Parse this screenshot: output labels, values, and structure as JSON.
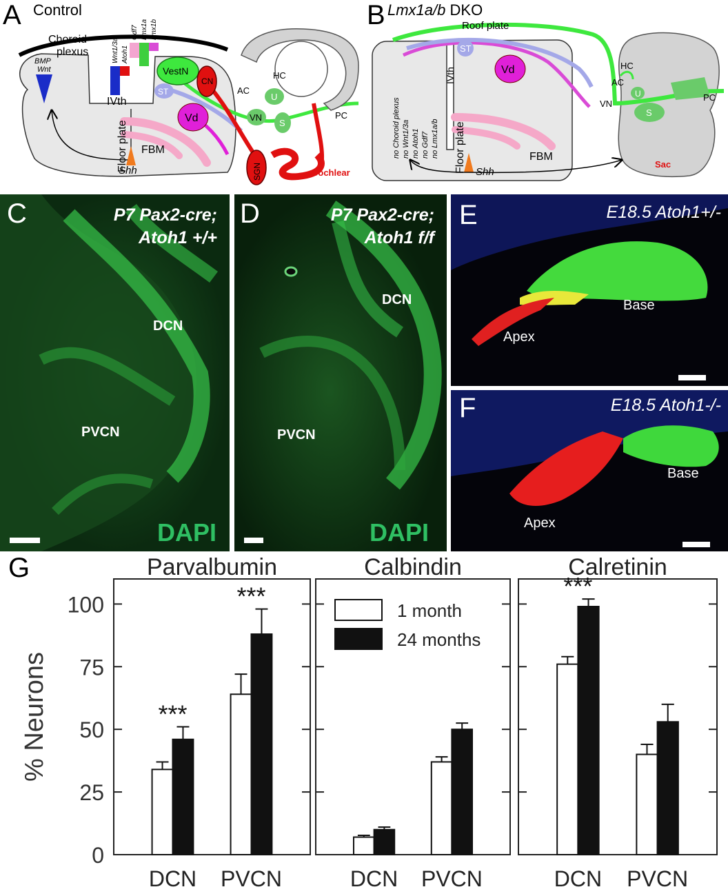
{
  "panel_A": {
    "letter": "A",
    "title": "Control",
    "labels": {
      "choroid": "Choroid",
      "plexus": "plexus",
      "bmp": "BMP",
      "wnt": "Wnt",
      "genes": [
        "Wnt1/3a",
        "Atoh1",
        "Gdf7",
        "Lmx1a",
        "Lmx1b"
      ],
      "ivth": "IVth",
      "vestn": "VestN",
      "cn": "CN",
      "st": "ST",
      "vd": "Vd",
      "vn": "VN",
      "hc": "HC",
      "ac": "AC",
      "u": "U",
      "s": "S",
      "pc": "PC",
      "floor_plate": "Floor plate",
      "fbm": "FBM",
      "shh": "Shh",
      "sgn": "SGN",
      "cochlear": "Cochlear"
    }
  },
  "panel_B": {
    "letter": "B",
    "title_italic": "Lmx1a/b",
    "title_rest": " DKO",
    "labels": {
      "roof_plate": "Roof plate",
      "st": "ST",
      "vd": "Vd",
      "ivth": "IVth",
      "no_list": [
        "no Choroid plexus",
        "no Wnt1/3a",
        "no Atoh1",
        "no Gdf7",
        "no Lmx1a/b"
      ],
      "floor_plate": "Floor plate",
      "fbm": "FBM",
      "shh": "Shh",
      "hc": "HC",
      "ac": "AC",
      "u": "U",
      "vn": "VN",
      "s": "S",
      "pc": "PC",
      "sac": "Sac"
    }
  },
  "panel_C": {
    "letter": "C",
    "title_line1": "P7 Pax2-cre;",
    "title_line2": "Atoh1 +/+",
    "dcn": "DCN",
    "pvcn": "PVCN",
    "stain": "DAPI"
  },
  "panel_D": {
    "letter": "D",
    "title_line1": "P7 Pax2-cre;",
    "title_line2": "Atoh1 f/f",
    "dcn": "DCN",
    "pvcn": "PVCN",
    "stain": "DAPI"
  },
  "panel_E": {
    "letter": "E",
    "title": "E18.5 Atoh1+/-",
    "base": "Base",
    "apex": "Apex"
  },
  "panel_F": {
    "letter": "F",
    "title": "E18.5 Atoh1-/-",
    "base": "Base",
    "apex": "Apex"
  },
  "panel_G": {
    "letter": "G",
    "ylabel": "% Neurons",
    "legend": [
      "1 month",
      "24 months"
    ]
  },
  "chart_data": {
    "type": "bar",
    "ylabel": "% Neurons",
    "ylim": [
      0,
      110
    ],
    "yticks": [
      0,
      25,
      50,
      75,
      100
    ],
    "legend_placement": "top-left of middle subplot",
    "series_names": [
      "1 month",
      "24 months"
    ],
    "series_colors": [
      "#ffffff",
      "#111111"
    ],
    "subplots": [
      {
        "title": "Parvalbumin",
        "categories": [
          "DCN",
          "PVCN"
        ],
        "series": [
          {
            "name": "1 month",
            "values": [
              34,
              64
            ],
            "errors": [
              3,
              8
            ]
          },
          {
            "name": "24 months",
            "values": [
              46,
              88
            ],
            "errors": [
              5,
              10
            ]
          }
        ],
        "annotations": [
          {
            "category": "DCN",
            "text": "***"
          },
          {
            "category": "PVCN",
            "text": "***"
          }
        ]
      },
      {
        "title": "Calbindin",
        "categories": [
          "DCN",
          "PVCN"
        ],
        "series": [
          {
            "name": "1 month",
            "values": [
              7,
              37
            ],
            "errors": [
              0.7,
              2
            ]
          },
          {
            "name": "24 months",
            "values": [
              10,
              50
            ],
            "errors": [
              1,
              2.5
            ]
          }
        ],
        "annotations": []
      },
      {
        "title": "Calretinin",
        "categories": [
          "DCN",
          "PVCN"
        ],
        "series": [
          {
            "name": "1 month",
            "values": [
              76,
              40
            ],
            "errors": [
              3,
              4
            ]
          },
          {
            "name": "24 months",
            "values": [
              99,
              53
            ],
            "errors": [
              3,
              7
            ]
          }
        ],
        "annotations": [
          {
            "category": "DCN",
            "text": "***"
          }
        ]
      }
    ]
  }
}
